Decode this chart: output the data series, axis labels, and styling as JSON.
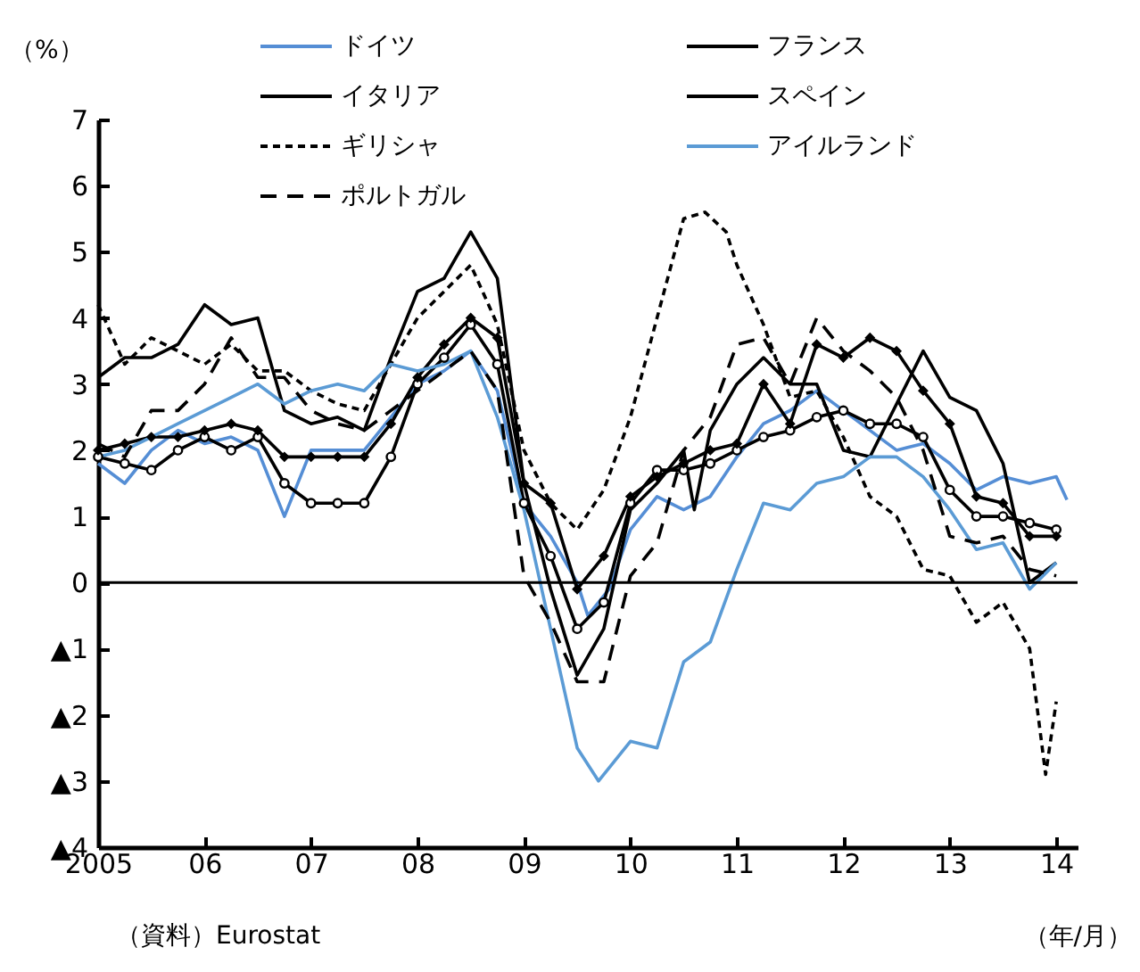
{
  "chart_data": {
    "type": "line",
    "xlabel": "（年/月）",
    "ylabel": "（%）",
    "annotations": [
      "（資料）Eurostat"
    ],
    "xlim": [
      2005,
      2014.2
    ],
    "xticks": [
      {
        "value": 2005,
        "label": "2005"
      },
      {
        "value": 2006,
        "label": "06"
      },
      {
        "value": 2007,
        "label": "07"
      },
      {
        "value": 2008,
        "label": "08"
      },
      {
        "value": 2009,
        "label": "09"
      },
      {
        "value": 2010,
        "label": "10"
      },
      {
        "value": 2011,
        "label": "11"
      },
      {
        "value": 2012,
        "label": "12"
      },
      {
        "value": 2013,
        "label": "13"
      },
      {
        "value": 2014,
        "label": "14"
      }
    ],
    "ylim": [
      -4,
      7
    ],
    "yticks": [
      {
        "value": -4,
        "label": "▲4"
      },
      {
        "value": -3,
        "label": "▲3"
      },
      {
        "value": -2,
        "label": "▲2"
      },
      {
        "value": -1,
        "label": "▲1"
      },
      0,
      1,
      2,
      3,
      4,
      5,
      6,
      7
    ],
    "grid": false,
    "legend": "top",
    "ref_lines": [
      {
        "axis": "y",
        "value": 0,
        "color": "#000000"
      }
    ],
    "series": [
      {
        "name": "ドイツ",
        "color": "#558ed5",
        "line_style": "solid",
        "marker": "none",
        "x": [
          2005,
          2005.25,
          2005.5,
          2005.75,
          2006,
          2006.25,
          2006.5,
          2006.75,
          2007,
          2007.25,
          2007.5,
          2007.75,
          2008,
          2008.25,
          2008.5,
          2008.75,
          2009,
          2009.25,
          2009.5,
          2009.6,
          2009.8,
          2010,
          2010.25,
          2010.5,
          2010.75,
          2011,
          2011.25,
          2011.5,
          2011.75,
          2012,
          2012.25,
          2012.5,
          2012.75,
          2013,
          2013.25,
          2013.5,
          2013.75,
          2014,
          2014.1
        ],
        "values": [
          1.8,
          1.5,
          2.0,
          2.3,
          2.1,
          2.2,
          2.0,
          1.0,
          2.0,
          2.0,
          2.0,
          2.5,
          3.0,
          3.2,
          3.5,
          2.9,
          1.2,
          0.7,
          0.0,
          -0.5,
          -0.1,
          0.8,
          1.3,
          1.1,
          1.3,
          1.9,
          2.4,
          2.6,
          2.9,
          2.6,
          2.3,
          2.0,
          2.1,
          1.8,
          1.4,
          1.6,
          1.5,
          1.6,
          1.25
        ]
      },
      {
        "name": "フランス",
        "color": "#000000",
        "line_style": "solid",
        "marker": "circle",
        "x": [
          2005,
          2005.25,
          2005.5,
          2005.75,
          2006,
          2006.25,
          2006.5,
          2006.75,
          2007,
          2007.25,
          2007.5,
          2007.75,
          2008,
          2008.25,
          2008.5,
          2008.75,
          2009,
          2009.25,
          2009.5,
          2009.75,
          2010,
          2010.25,
          2010.5,
          2010.75,
          2011,
          2011.25,
          2011.5,
          2011.75,
          2012,
          2012.25,
          2012.5,
          2012.75,
          2013,
          2013.25,
          2013.5,
          2013.75,
          2014
        ],
        "values": [
          1.9,
          1.8,
          1.7,
          2.0,
          2.2,
          2.0,
          2.2,
          1.5,
          1.2,
          1.2,
          1.2,
          1.9,
          3.0,
          3.4,
          3.9,
          3.3,
          1.2,
          0.4,
          -0.7,
          -0.3,
          1.2,
          1.7,
          1.7,
          1.8,
          2.0,
          2.2,
          2.3,
          2.5,
          2.6,
          2.4,
          2.4,
          2.2,
          1.4,
          1.0,
          1.0,
          0.9,
          0.8
        ]
      },
      {
        "name": "イタリア",
        "color": "#000000",
        "line_style": "solid",
        "marker": "diamond",
        "x": [
          2005,
          2005.25,
          2005.5,
          2005.75,
          2006,
          2006.25,
          2006.5,
          2006.75,
          2007,
          2007.25,
          2007.5,
          2007.75,
          2008,
          2008.25,
          2008.5,
          2008.75,
          2009,
          2009.25,
          2009.5,
          2009.75,
          2010,
          2010.25,
          2010.5,
          2010.75,
          2011,
          2011.25,
          2011.5,
          2011.75,
          2012,
          2012.25,
          2012.5,
          2012.75,
          2013,
          2013.25,
          2013.5,
          2013.75,
          2014
        ],
        "values": [
          2.0,
          2.1,
          2.2,
          2.2,
          2.3,
          2.4,
          2.3,
          1.9,
          1.9,
          1.9,
          1.9,
          2.4,
          3.1,
          3.6,
          4.0,
          3.7,
          1.5,
          1.2,
          -0.1,
          0.4,
          1.3,
          1.6,
          1.8,
          2.0,
          2.1,
          3.0,
          2.4,
          3.6,
          3.4,
          3.7,
          3.5,
          2.9,
          2.4,
          1.3,
          1.2,
          0.7,
          0.7
        ]
      },
      {
        "name": "スペイン",
        "color": "#000000",
        "line_style": "solid",
        "marker": "none",
        "x": [
          2005,
          2005.25,
          2005.5,
          2005.75,
          2006,
          2006.25,
          2006.5,
          2006.75,
          2007,
          2007.25,
          2007.5,
          2007.75,
          2008,
          2008.25,
          2008.5,
          2008.75,
          2009,
          2009.25,
          2009.5,
          2009.75,
          2010,
          2010.25,
          2010.5,
          2010.6,
          2010.75,
          2011,
          2011.25,
          2011.5,
          2011.75,
          2012,
          2012.25,
          2012.5,
          2012.75,
          2013,
          2013.25,
          2013.5,
          2013.75,
          2014
        ],
        "values": [
          3.1,
          3.4,
          3.4,
          3.6,
          4.2,
          3.9,
          4.0,
          2.6,
          2.4,
          2.5,
          2.3,
          3.4,
          4.4,
          4.6,
          5.3,
          4.6,
          1.5,
          -0.1,
          -1.4,
          -0.7,
          1.1,
          1.5,
          2.0,
          1.1,
          2.3,
          3.0,
          3.4,
          3.0,
          3.0,
          2.0,
          1.9,
          2.7,
          3.5,
          2.8,
          2.6,
          1.8,
          0.0,
          0.3
        ]
      },
      {
        "name": "ギリシャ",
        "color": "#000000",
        "line_style": "dotted",
        "marker": "none",
        "x": [
          2005,
          2005.25,
          2005.5,
          2005.75,
          2006,
          2006.25,
          2006.5,
          2006.75,
          2007,
          2007.25,
          2007.5,
          2007.75,
          2008,
          2008.25,
          2008.5,
          2008.75,
          2009,
          2009.25,
          2009.5,
          2009.75,
          2010,
          2010.25,
          2010.5,
          2010.7,
          2010.9,
          2011,
          2011.25,
          2011.5,
          2011.75,
          2012,
          2012.25,
          2012.5,
          2012.75,
          2013,
          2013.25,
          2013.5,
          2013.75,
          2013.9,
          2014
        ],
        "values": [
          4.2,
          3.3,
          3.7,
          3.5,
          3.3,
          3.6,
          3.2,
          3.2,
          2.9,
          2.7,
          2.6,
          3.3,
          4.0,
          4.4,
          4.8,
          3.9,
          2.0,
          1.2,
          0.8,
          1.4,
          2.5,
          4.0,
          5.5,
          5.6,
          5.3,
          4.8,
          3.9,
          2.8,
          2.9,
          2.2,
          1.3,
          1.0,
          0.2,
          0.1,
          -0.6,
          -0.3,
          -1.0,
          -2.9,
          -1.8
        ]
      },
      {
        "name": "アイルランド",
        "color": "#5b9bd5",
        "line_style": "solid",
        "marker": "none",
        "x": [
          2005,
          2005.25,
          2005.5,
          2005.75,
          2006,
          2006.25,
          2006.5,
          2006.75,
          2007,
          2007.25,
          2007.5,
          2007.75,
          2008,
          2008.25,
          2008.5,
          2008.75,
          2009,
          2009.25,
          2009.5,
          2009.7,
          2010,
          2010.25,
          2010.5,
          2010.75,
          2011,
          2011.25,
          2011.5,
          2011.75,
          2012,
          2012.25,
          2012.5,
          2012.75,
          2013,
          2013.25,
          2013.5,
          2013.75,
          2014
        ],
        "values": [
          1.9,
          2.0,
          2.2,
          2.4,
          2.6,
          2.8,
          3.0,
          2.7,
          2.9,
          3.0,
          2.9,
          3.3,
          3.2,
          3.3,
          3.5,
          2.5,
          1.1,
          -0.7,
          -2.5,
          -3.0,
          -2.4,
          -2.5,
          -1.2,
          -0.9,
          0.2,
          1.2,
          1.1,
          1.5,
          1.6,
          1.9,
          1.9,
          1.6,
          1.1,
          0.5,
          0.6,
          -0.1,
          0.3
        ]
      },
      {
        "name": "ポルトガル",
        "color": "#000000",
        "line_style": "dashed",
        "marker": "none",
        "x": [
          2005,
          2005.25,
          2005.5,
          2005.75,
          2006,
          2006.25,
          2006.5,
          2006.75,
          2007,
          2007.25,
          2007.5,
          2007.75,
          2008,
          2008.25,
          2008.5,
          2008.75,
          2009,
          2009.25,
          2009.5,
          2009.75,
          2010,
          2010.25,
          2010.5,
          2010.75,
          2011,
          2011.25,
          2011.5,
          2011.75,
          2012,
          2012.25,
          2012.5,
          2012.75,
          2013,
          2013.25,
          2013.5,
          2013.75,
          2014
        ],
        "values": [
          2.1,
          1.9,
          2.6,
          2.6,
          3.0,
          3.7,
          3.1,
          3.1,
          2.6,
          2.4,
          2.3,
          2.6,
          2.9,
          3.2,
          3.5,
          2.9,
          0.1,
          -0.6,
          -1.5,
          -1.5,
          0.1,
          0.6,
          2.0,
          2.5,
          3.6,
          3.7,
          3.0,
          4.0,
          3.5,
          3.2,
          2.8,
          2.0,
          0.7,
          0.6,
          0.7,
          0.2,
          0.1
        ]
      }
    ]
  }
}
